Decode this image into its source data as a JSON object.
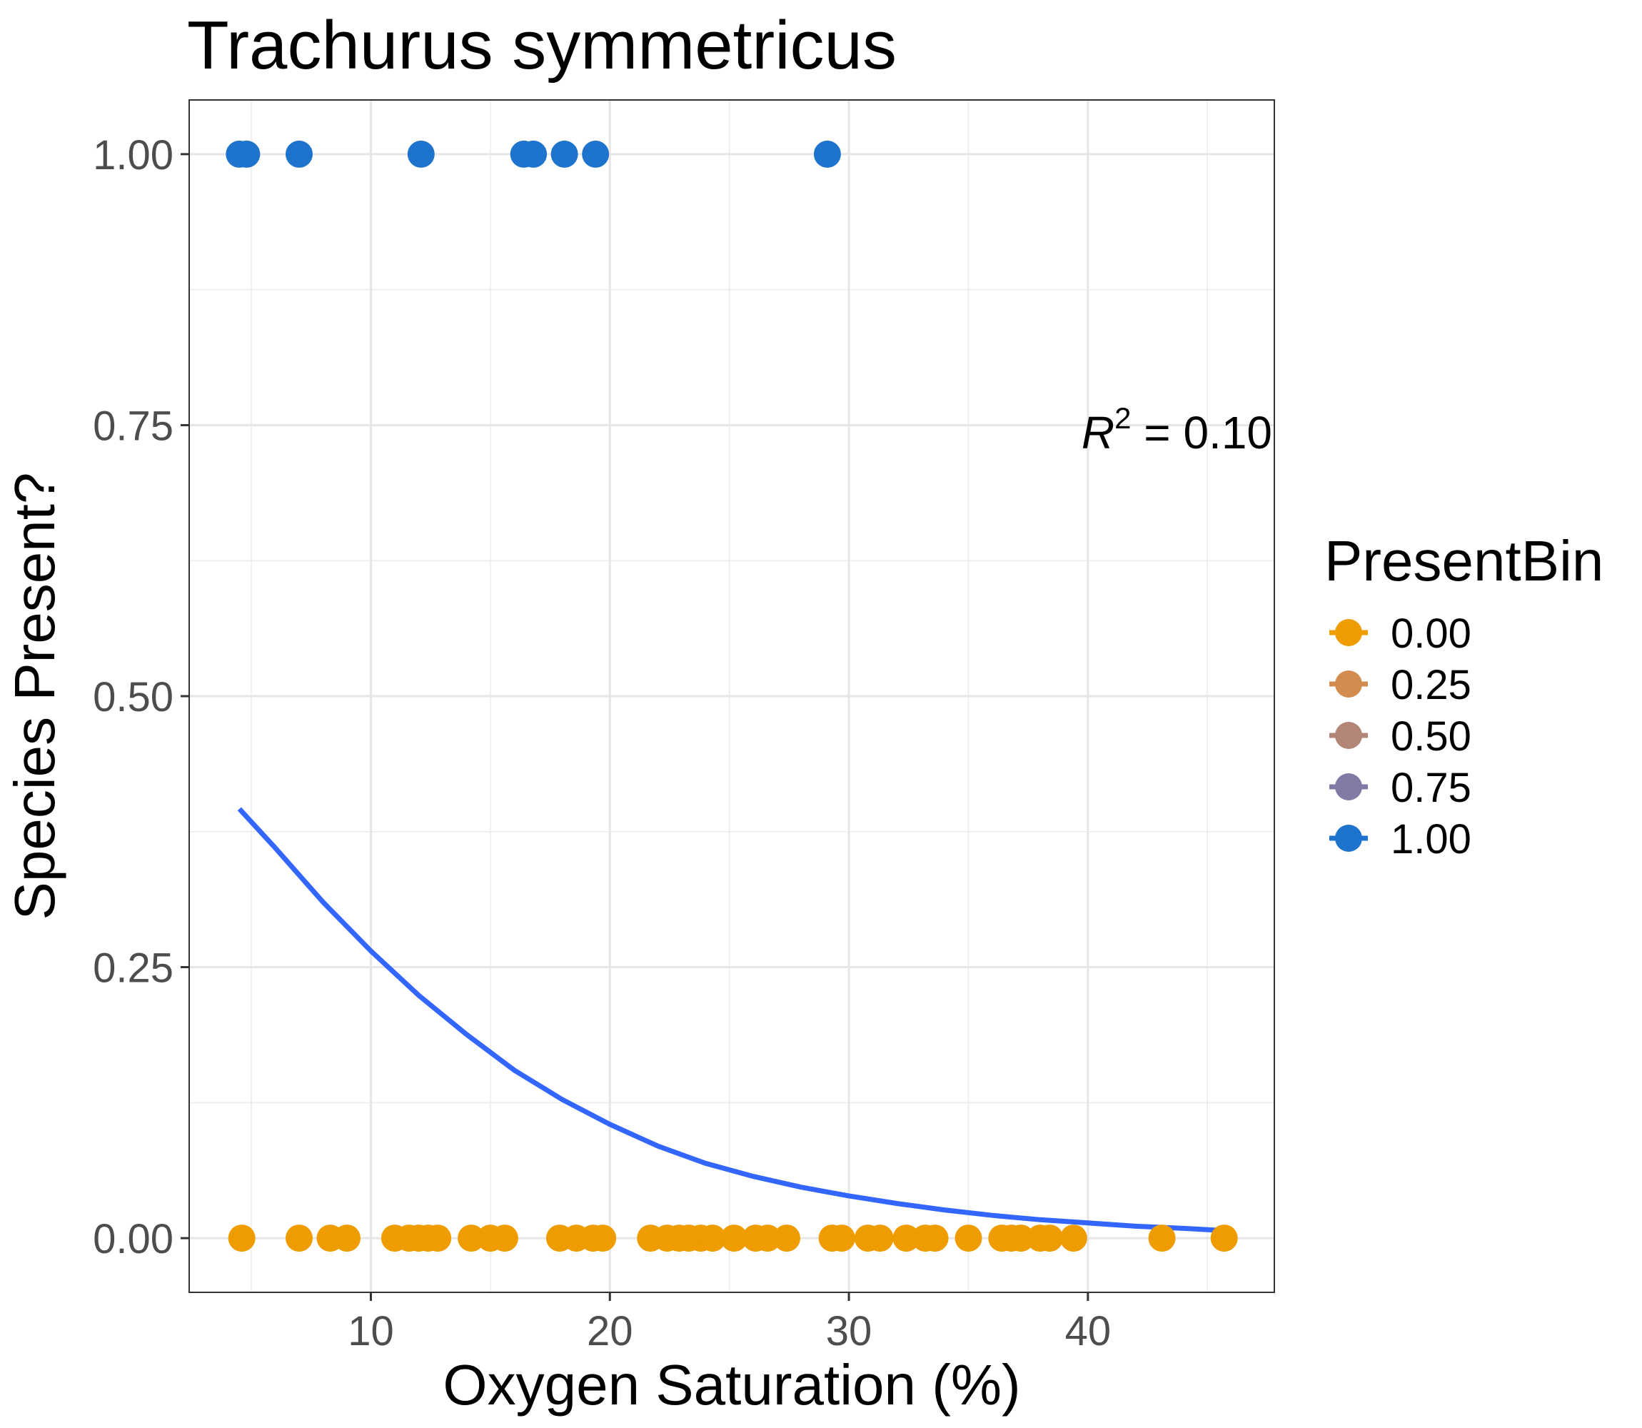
{
  "chart_data": {
    "type": "scatter",
    "title": "Trachurus symmetricus",
    "xlabel": "Oxygen Saturation (%)",
    "ylabel": "Species Present?",
    "xlim": [
      2.4,
      47.8
    ],
    "ylim": [
      -0.05,
      1.05
    ],
    "x_ticks": [
      10,
      20,
      30,
      40
    ],
    "x_tick_labels": [
      "10",
      "20",
      "30",
      "40"
    ],
    "y_ticks": [
      0,
      0.25,
      0.5,
      0.75,
      1
    ],
    "y_tick_labels": [
      "0.00",
      "0.25",
      "0.50",
      "0.75",
      "1.00"
    ],
    "grid": true,
    "legend": {
      "title": "PresentBin",
      "position": "right",
      "entries": [
        {
          "label": "0.00",
          "color": "#ef9c00"
        },
        {
          "label": "0.25",
          "color": "#d28c4f"
        },
        {
          "label": "0.50",
          "color": "#b28576"
        },
        {
          "label": "0.75",
          "color": "#827aa4"
        },
        {
          "label": "1.00",
          "color": "#1e73cc"
        }
      ]
    },
    "annotation": {
      "r_label": "R",
      "exponent": "2",
      "value_text": " = 0.10"
    },
    "series": [
      {
        "present_bin": 1.0,
        "color": "#1e73cc",
        "x": [
          4.5,
          4.8,
          7.0,
          12.1,
          16.4,
          16.8,
          18.1,
          19.4,
          29.1
        ],
        "y": [
          1,
          1,
          1,
          1,
          1,
          1,
          1,
          1,
          1
        ]
      },
      {
        "present_bin": 0.0,
        "color": "#ef9c00",
        "x": [
          4.6,
          7.0,
          8.3,
          9.0,
          11.0,
          11.6,
          12.0,
          12.4,
          12.8,
          14.2,
          15.0,
          15.6,
          17.9,
          18.6,
          19.3,
          19.7,
          21.7,
          22.4,
          22.9,
          23.3,
          23.8,
          24.3,
          25.2,
          26.1,
          26.6,
          27.4,
          29.3,
          29.7,
          30.8,
          31.3,
          32.4,
          33.2,
          33.6,
          35.0,
          36.4,
          36.8,
          37.2,
          38.0,
          38.4,
          39.4,
          43.1,
          45.7
        ],
        "y": [
          0,
          0,
          0,
          0,
          0,
          0,
          0,
          0,
          0,
          0,
          0,
          0,
          0,
          0,
          0,
          0,
          0,
          0,
          0,
          0,
          0,
          0,
          0,
          0,
          0,
          0,
          0,
          0,
          0,
          0,
          0,
          0,
          0,
          0,
          0,
          0,
          0,
          0,
          0,
          0,
          0,
          0
        ]
      }
    ],
    "fit": {
      "type": "logistic",
      "color": "#3366ff",
      "x": [
        4.5,
        6.0,
        8.0,
        10.0,
        12.0,
        14.0,
        16.0,
        18.0,
        20.0,
        22.0,
        24.0,
        26.0,
        28.0,
        30.0,
        32.0,
        34.0,
        36.0,
        38.0,
        40.0,
        42.0,
        44.0,
        45.7
      ],
      "y": [
        0.396,
        0.36,
        0.31,
        0.265,
        0.224,
        0.188,
        0.155,
        0.128,
        0.105,
        0.085,
        0.069,
        0.057,
        0.047,
        0.039,
        0.032,
        0.026,
        0.021,
        0.017,
        0.014,
        0.011,
        0.009,
        0.007
      ]
    }
  }
}
